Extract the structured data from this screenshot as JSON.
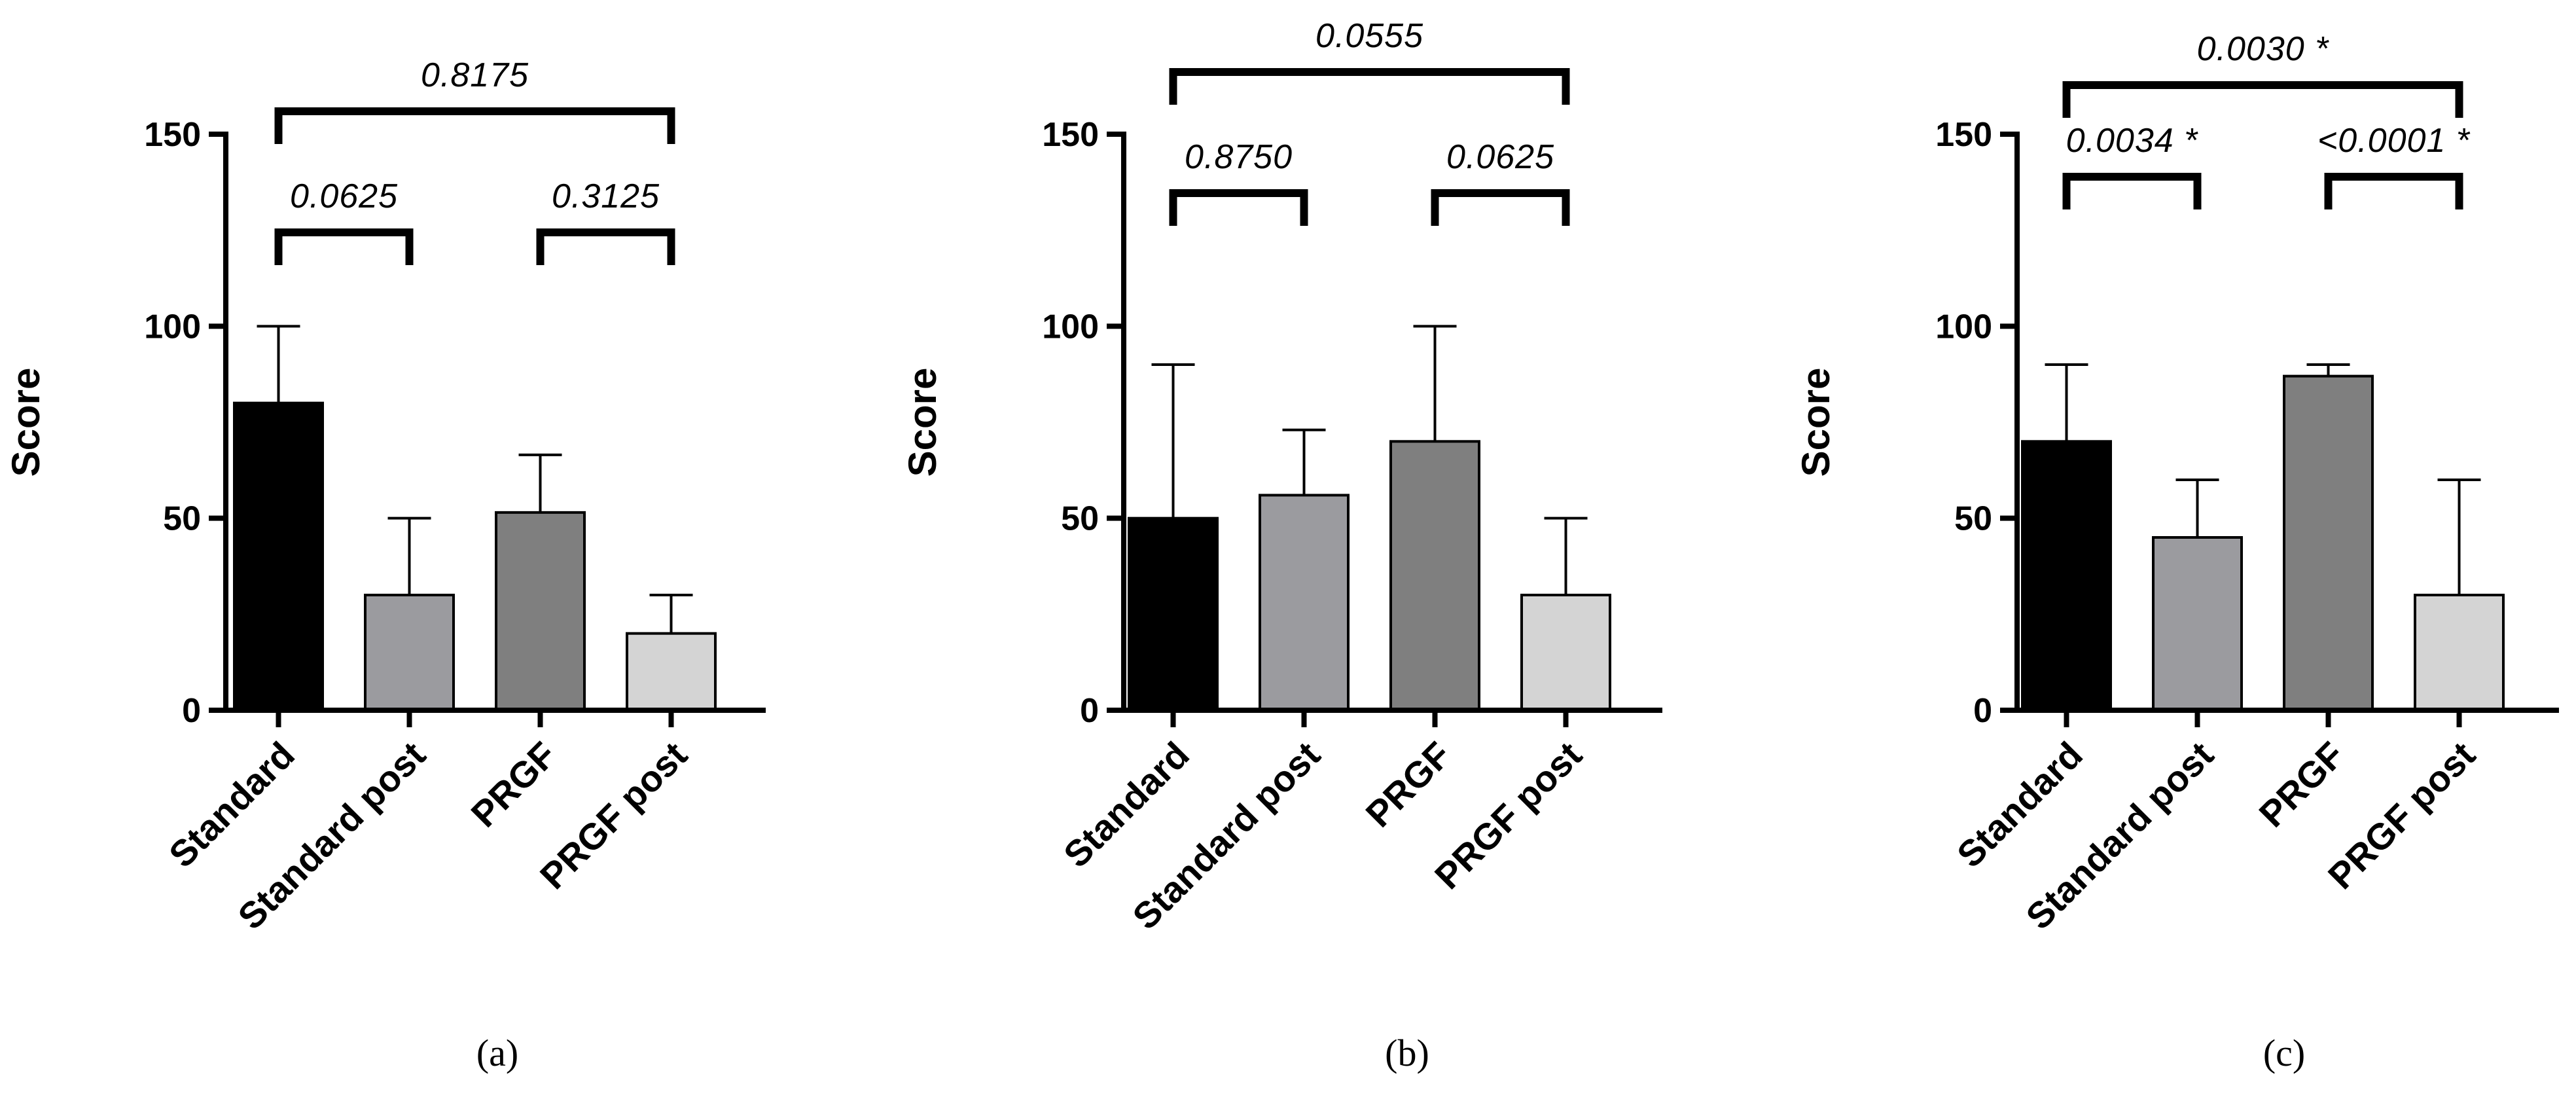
{
  "chart_data": [
    {
      "type": "bar",
      "panel_label": "(a)",
      "title": "",
      "xlabel": "",
      "ylabel": "Score",
      "ylim": [
        0,
        150
      ],
      "yticks": [
        0,
        50,
        100,
        150
      ],
      "categories": [
        "Standard",
        "Standard post",
        "PRGF",
        "PRGF post"
      ],
      "values": [
        80,
        30,
        51.5,
        20
      ],
      "error_upper": [
        100,
        50,
        66.5,
        30
      ],
      "bar_colors": [
        "#000000",
        "#9b9b9f",
        "#7f7f7f",
        "#d4d4d4"
      ],
      "comparisons": [
        {
          "from": 0,
          "to": 1,
          "label": "0.0625",
          "level": 1
        },
        {
          "from": 2,
          "to": 3,
          "label": "0.3125",
          "level": 1
        },
        {
          "from": 0,
          "to": 3,
          "label": "0.8175",
          "level": 2
        }
      ]
    },
    {
      "type": "bar",
      "panel_label": "(b)",
      "title": "",
      "xlabel": "",
      "ylabel": "Score",
      "ylim": [
        0,
        150
      ],
      "yticks": [
        0,
        50,
        100,
        150
      ],
      "categories": [
        "Standard",
        "Standard post",
        "PRGF",
        "PRGF post"
      ],
      "values": [
        50,
        56,
        70,
        30
      ],
      "error_upper": [
        90,
        73,
        100,
        50
      ],
      "bar_colors": [
        "#000000",
        "#9b9b9f",
        "#7f7f7f",
        "#d4d4d4"
      ],
      "comparisons": [
        {
          "from": 0,
          "to": 1,
          "label": "0.8750",
          "level": 1
        },
        {
          "from": 2,
          "to": 3,
          "label": "0.0625",
          "level": 1
        },
        {
          "from": 0,
          "to": 3,
          "label": "0.0555",
          "level": 2
        }
      ]
    },
    {
      "type": "bar",
      "panel_label": "(c)",
      "title": "",
      "xlabel": "",
      "ylabel": "Score",
      "ylim": [
        0,
        150
      ],
      "yticks": [
        0,
        50,
        100,
        150
      ],
      "categories": [
        "Standard",
        "Standard post",
        "PRGF",
        "PRGF post"
      ],
      "values": [
        70,
        45,
        87,
        30
      ],
      "error_upper": [
        90,
        60,
        90,
        60
      ],
      "bar_colors": [
        "#000000",
        "#9b9b9f",
        "#7f7f7f",
        "#d4d4d4"
      ],
      "comparisons": [
        {
          "from": 0,
          "to": 1,
          "label": "0.0034 *",
          "level": 1
        },
        {
          "from": 2,
          "to": 3,
          "label": "<0.0001 *",
          "level": 1
        },
        {
          "from": 0,
          "to": 3,
          "label": "0.0030 *",
          "level": 2
        }
      ]
    }
  ]
}
